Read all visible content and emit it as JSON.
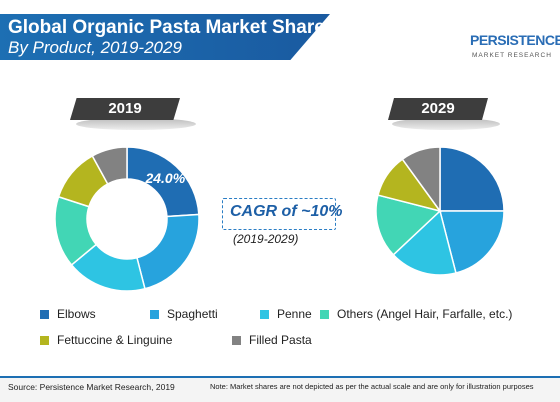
{
  "header": {
    "title_line1": "Global Organic Pasta Market Share (%)",
    "title_line2": "By Product, 2019-2029"
  },
  "logo": {
    "main": "PERSISTENCE",
    "sub": "MARKET RESEARCH"
  },
  "cagr": {
    "label": "CAGR of ~10%",
    "years": "(2019-2029)"
  },
  "chart_data": [
    {
      "type": "pie",
      "title": "2019",
      "donut": true,
      "categories": [
        "Elbows",
        "Spaghetti",
        "Penne",
        "Others (Angel Hair, Farfalle, etc.)",
        "Fettuccine & Linguine",
        "Filled Pasta"
      ],
      "values": [
        24.0,
        22.0,
        18.0,
        16.0,
        12.0,
        8.0
      ],
      "data_labels": [
        "24.0%",
        "",
        "",
        "",
        "",
        ""
      ]
    },
    {
      "type": "pie",
      "title": "2029",
      "donut": false,
      "categories": [
        "Elbows",
        "Spaghetti",
        "Penne",
        "Others (Angel Hair, Farfalle, etc.)",
        "Fettuccine & Linguine",
        "Filled Pasta"
      ],
      "values": [
        25.0,
        21.0,
        17.0,
        16.0,
        11.0,
        10.0
      ]
    }
  ],
  "legend": [
    {
      "label": "Elbows",
      "color": "#1f6db3"
    },
    {
      "label": "Spaghetti",
      "color": "#27a3dd"
    },
    {
      "label": "Penne",
      "color": "#2ec4e3"
    },
    {
      "label": "Others (Angel Hair, Farfalle, etc.)",
      "color": "#42d6b5"
    },
    {
      "label": "Fettuccine & Linguine",
      "color": "#b4b51f"
    },
    {
      "label": "Filled Pasta",
      "color": "#828282"
    }
  ],
  "footer": {
    "source": "Source: Persistence Market Research, 2019",
    "note": "Note: Market shares are not depicted as per the actual scale and are only for illustration purposes"
  }
}
